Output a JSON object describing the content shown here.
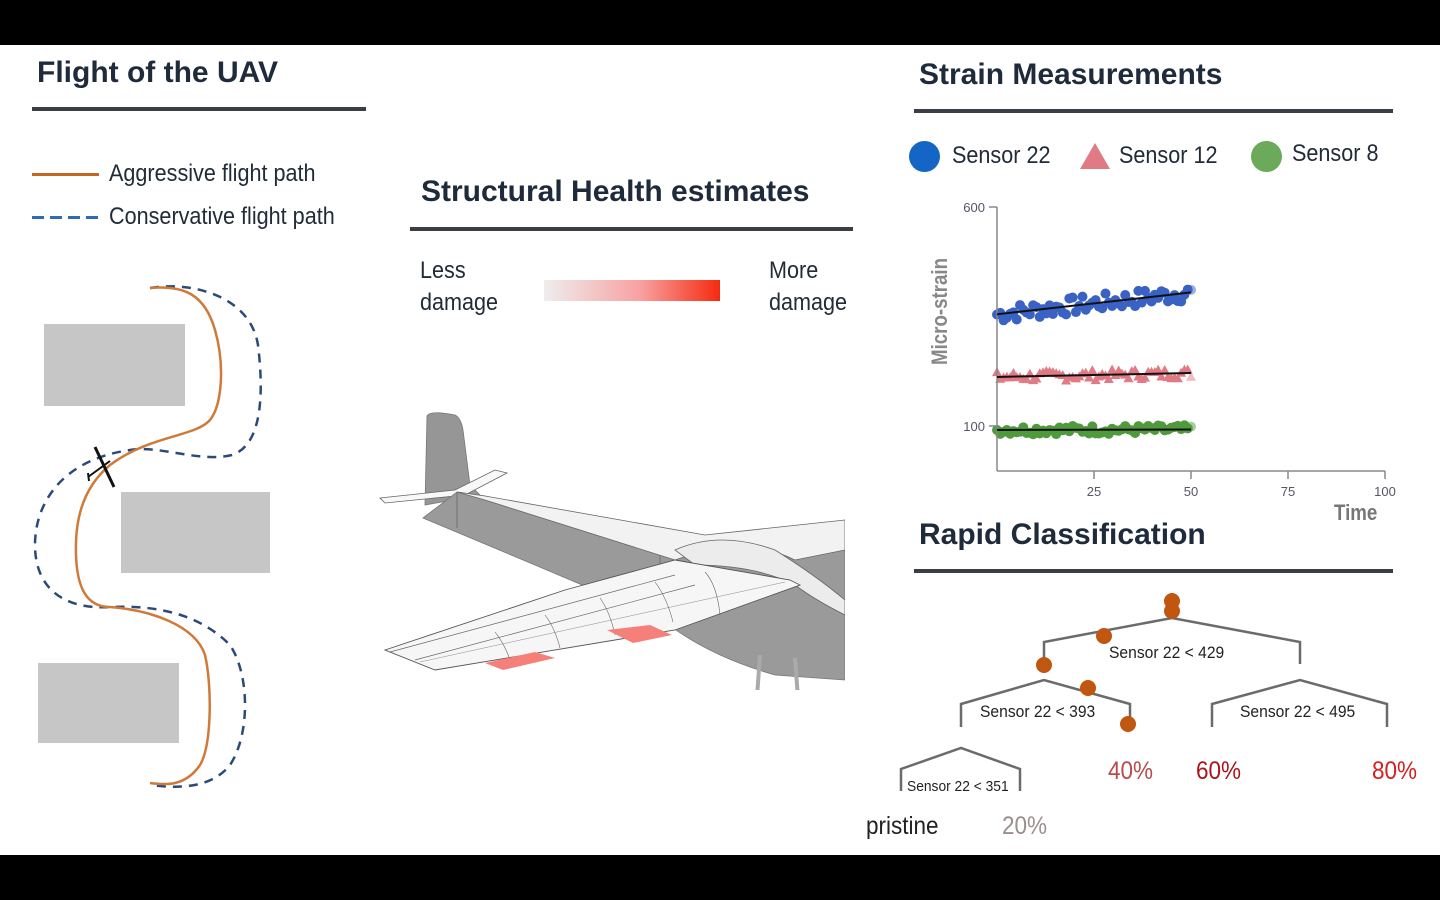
{
  "flight": {
    "title": "Flight of the UAV",
    "legend": [
      {
        "label": "Aggressive flight path",
        "style": "solid",
        "color": "#c4661f"
      },
      {
        "label": "Conservative flight path",
        "style": "dashed",
        "color": "#2e6db5"
      }
    ],
    "obstacle_color": "#c6c6c6",
    "path_colors": {
      "aggressive": "#d07a3a",
      "conservative": "#2b4a78"
    }
  },
  "health": {
    "title": "Structural Health estimates",
    "scale": {
      "low_label_line1": "Less",
      "low_label_line2": "damage",
      "high_label_line1": "More",
      "high_label_line2": "damage",
      "gradient_from": "#eeeeee",
      "gradient_to": "#f52a0f"
    },
    "damage_patch_color": "#f5807a"
  },
  "strain": {
    "title": "Strain Measurements",
    "legend": [
      {
        "label": "Sensor 22",
        "marker": "circle",
        "color": "#1565c6"
      },
      {
        "label": "Sensor 12",
        "marker": "triangle",
        "color": "#e07a84"
      },
      {
        "label": "Sensor 8",
        "marker": "circle",
        "color": "#6aaa5a"
      }
    ],
    "y_axis_label": "Micro-strain",
    "x_axis_label": "Time",
    "y_ticks": [
      "600",
      "100"
    ],
    "x_ticks": [
      "25",
      "50",
      "75",
      "100"
    ]
  },
  "chart_data": {
    "type": "scatter",
    "title": "Strain Measurements",
    "xlabel": "Time",
    "ylabel": "Micro-strain",
    "xlim": [
      0,
      100
    ],
    "ylim": [
      0,
      600
    ],
    "x_ticks": [
      25,
      50,
      75,
      100
    ],
    "y_ticks": [
      100,
      600
    ],
    "grid": false,
    "legend_position": "top",
    "series": [
      {
        "name": "Sensor 22",
        "marker": "circle",
        "color": "#3a62c4",
        "x_range": [
          0,
          50
        ],
        "trend_start": 355,
        "trend_end": 405,
        "noise": 20
      },
      {
        "name": "Sensor 12",
        "marker": "triangle",
        "color": "#e07a84",
        "x_range": [
          0,
          50
        ],
        "trend_start": 212,
        "trend_end": 221,
        "noise": 12
      },
      {
        "name": "Sensor 8",
        "marker": "circle",
        "color": "#4f9a3c",
        "x_range": [
          0,
          50
        ],
        "trend_start": 91,
        "trend_end": 92,
        "noise": 10
      }
    ]
  },
  "classification": {
    "title": "Rapid Classification",
    "nodes": [
      {
        "label": "Sensor 22 < 429"
      },
      {
        "label": "Sensor 22 < 393"
      },
      {
        "label": "Sensor 22 < 495"
      },
      {
        "label": "Sensor 22 < 351"
      }
    ],
    "leaves": [
      {
        "label": "pristine",
        "color": "#222222"
      },
      {
        "label": "20%",
        "color": "#9b8e8e"
      },
      {
        "label": "40%",
        "color": "#b84a4a"
      },
      {
        "label": "60%",
        "color": "#a8141a"
      },
      {
        "label": "80%",
        "color": "#d41e1e"
      }
    ],
    "marker_color": "#c0560f"
  }
}
